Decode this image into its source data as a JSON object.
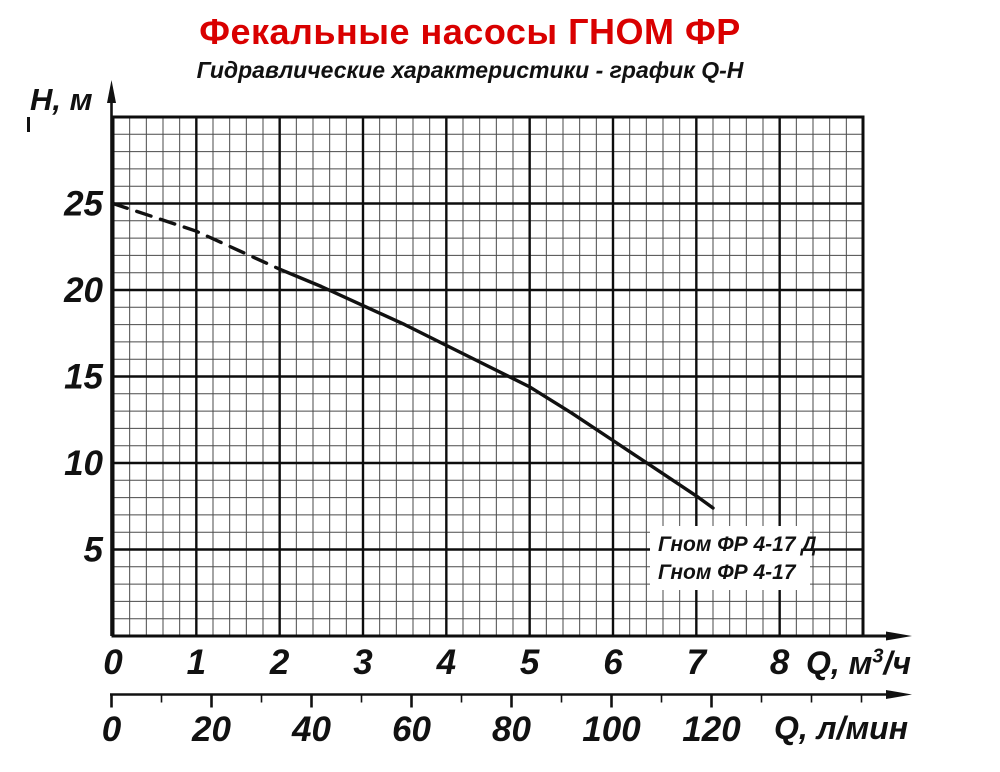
{
  "colors": {
    "title_red": "#d90000",
    "ink": "#111111",
    "grid_minor": "#4a4a4a",
    "grid_major": "#0d0d0d",
    "background": "#ffffff"
  },
  "chart_data": {
    "type": "line",
    "title": "Фекальные насосы ГНОМ ФР",
    "subtitle": "Гидравлические характеристики - график Q-H",
    "grid": "on",
    "y_axis": {
      "label": "H, м",
      "min": 0,
      "max": 30,
      "minor_step": 1,
      "major_step": 5,
      "tick_labels": [
        5,
        10,
        15,
        20,
        25
      ]
    },
    "x_axis_primary": {
      "label": "Q, м³/ч",
      "label_prefix": "Q, м",
      "label_sup": "3",
      "label_suffix": "/ч",
      "min": 0,
      "max": 9,
      "minor_step": 0.2,
      "major_step": 1,
      "tick_labels": [
        0,
        1,
        2,
        3,
        4,
        5,
        6,
        7,
        8
      ]
    },
    "x_axis_secondary": {
      "label": "Q, л/мин",
      "min": 0,
      "max": 150,
      "minor_step": 10,
      "major_step": 20,
      "tick_labels": [
        0,
        20,
        40,
        60,
        80,
        100,
        120
      ]
    },
    "legend": {
      "position": "inside-bottom-right",
      "entries": [
        "Гном ФР 4-17 Д",
        "Гном ФР 4-17"
      ]
    },
    "series": [
      {
        "name": "Гном ФР 4-17 Д / Гном ФР 4-17",
        "dash_until_q": 2,
        "points_q_h": [
          [
            0,
            25.0
          ],
          [
            0.5,
            24.2
          ],
          [
            1,
            23.4
          ],
          [
            1.5,
            22.3
          ],
          [
            2,
            21.2
          ],
          [
            2.5,
            20.2
          ],
          [
            3,
            19.1
          ],
          [
            3.5,
            18.0
          ],
          [
            4,
            16.8
          ],
          [
            4.5,
            15.6
          ],
          [
            5,
            14.4
          ],
          [
            5.5,
            12.9
          ],
          [
            6,
            11.3
          ],
          [
            6.5,
            9.7
          ],
          [
            7,
            8.1
          ],
          [
            7.2,
            7.4
          ]
        ]
      }
    ]
  }
}
